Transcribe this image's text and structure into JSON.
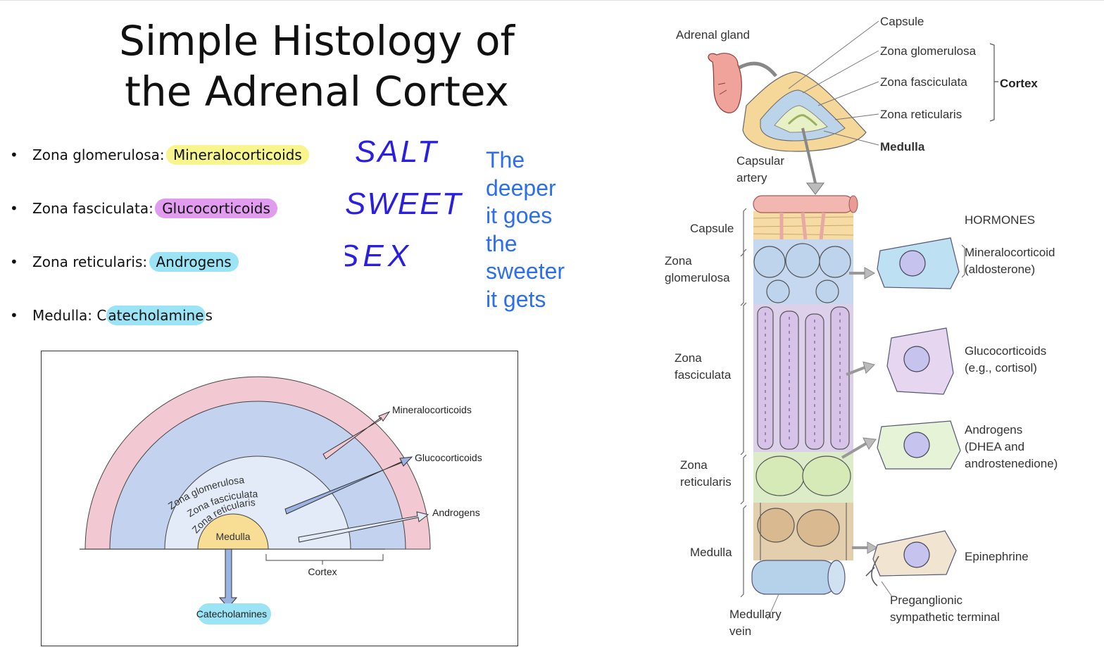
{
  "slide": {
    "title_line1": "Simple Histology of",
    "title_line2": "the Adrenal Cortex"
  },
  "bullets": [
    {
      "zone": "Zona glomerulosa: ",
      "hormone": "Mineralocorticoids",
      "highlight": "#f7f58c"
    },
    {
      "zone": "Zona fasciculata: ",
      "hormone": "Glucocorticoids",
      "highlight": "#e19cf0"
    },
    {
      "zone": "Zona reticularis: ",
      "hormone": "Androgens",
      "highlight": "#9be4f6"
    },
    {
      "zone": "Medulla: C",
      "hormone": "atecholamine",
      "suffix": "s",
      "highlight": "#9be4f6"
    }
  ],
  "bullet_symbol": "•",
  "handwritten": {
    "line1": "SALT",
    "line2": "SWEET",
    "line3": "SEX",
    "color": "#2a1ee0"
  },
  "note": {
    "lines": [
      "The",
      "deeper",
      "it goes",
      "the",
      "sweeter",
      "it gets"
    ],
    "color": "#2b6ef2"
  },
  "zone_diagram": {
    "zones": {
      "glomerulosa": "Zona glomerulosa",
      "fasciculata": "Zona fasciculata",
      "reticularis": "Zona reticularis",
      "medulla": "Medulla"
    },
    "outputs": {
      "mineralo": "Mineralocorticoids",
      "gluco": "Glucocorticoids",
      "androgens": "Androgens",
      "catechol": "Catecholamines"
    },
    "cortex_label": "Cortex",
    "colors": {
      "glomerulosa": "#f2c9d3",
      "fasciculata": "#c3d2ef",
      "reticularis": "#e4ebf8",
      "medulla": "#f8dd94"
    }
  },
  "histology": {
    "adrenal_gland": "Adrenal gland",
    "capsule": "Capsule",
    "zona_glomerulosa": "Zona glomerulosa",
    "zona_fasciculata": "Zona fasciculata",
    "zona_reticularis": "Zona reticularis",
    "medulla": "Medulla",
    "cortex": "Cortex",
    "capsular_artery_1": "Capsular",
    "capsular_artery_2": "artery",
    "left_capsule": "Capsule",
    "left_zona_1": "Zona",
    "left_glomerulosa": "glomerulosa",
    "left_zona_2": "Zona",
    "left_fasciculata": "fasciculata",
    "left_zona_3": "Zona",
    "left_reticularis": "reticularis",
    "left_medulla": "Medulla",
    "medullary_vein_1": "Medullary",
    "medullary_vein_2": "vein",
    "hormones_heading": "HORMONES",
    "h1_line1": "Mineralocorticoid",
    "h1_line2": "(aldosterone)",
    "h2_line1": "Glucocorticoids",
    "h2_line2": "(e.g., cortisol)",
    "h3_line1": "Androgens",
    "h3_line2": "(DHEA and",
    "h3_line3": "androstenedione)",
    "h4_line1": "Epinephrine",
    "pregang_1": "Preganglionic",
    "pregang_2": "sympathetic terminal"
  }
}
